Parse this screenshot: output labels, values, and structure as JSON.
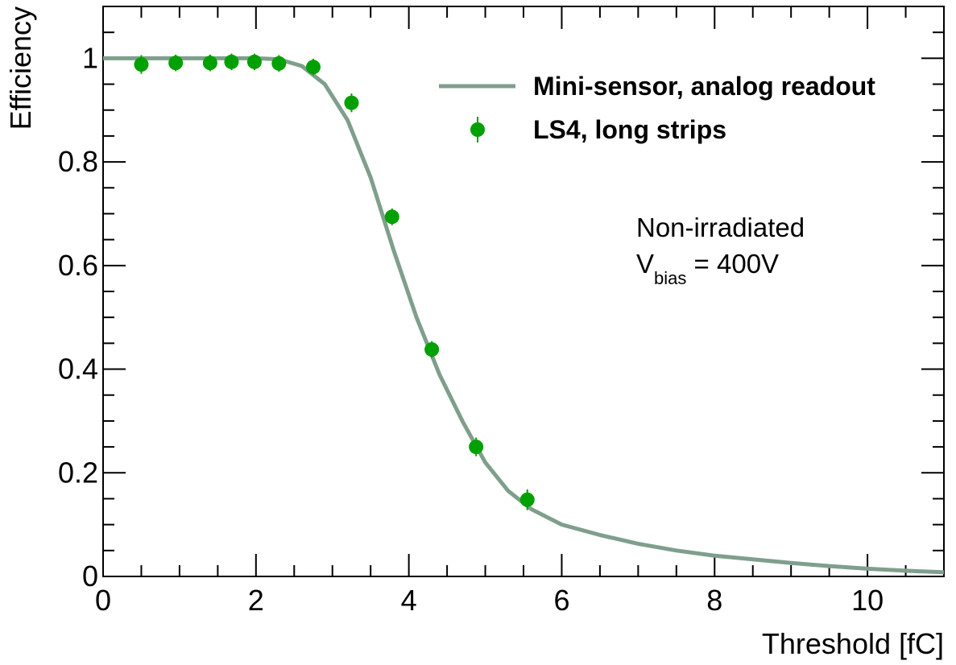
{
  "chart_data": {
    "type": "scatter",
    "xlabel": "Threshold [fC]",
    "ylabel": "Efficiency",
    "xlim": [
      0,
      11
    ],
    "ylim": [
      0,
      1.1
    ],
    "x_major_ticks": [
      0,
      2,
      4,
      6,
      8,
      10
    ],
    "x_tick_labels": [
      "0",
      "2",
      "4",
      "6",
      "8",
      "10"
    ],
    "y_major_ticks": [
      0,
      0.2,
      0.4,
      0.6,
      0.8,
      1
    ],
    "y_tick_labels": [
      "0",
      "0.2",
      "0.4",
      "0.6",
      "0.8",
      "1"
    ],
    "grid": false,
    "legend_position": "top-right",
    "series": [
      {
        "name": "Mini-sensor, analog readout",
        "kind": "line",
        "color": "#7f9f8c",
        "x": [
          0,
          1,
          2,
          2.3,
          2.6,
          2.9,
          3.2,
          3.5,
          3.8,
          4.1,
          4.4,
          4.7,
          5.0,
          5.3,
          5.6,
          6.0,
          6.5,
          7.0,
          7.5,
          8.0,
          8.5,
          9.0,
          9.5,
          10.0,
          10.5,
          11.0
        ],
        "y": [
          1.0,
          1.0,
          1.0,
          0.998,
          0.985,
          0.95,
          0.88,
          0.77,
          0.63,
          0.5,
          0.39,
          0.3,
          0.22,
          0.165,
          0.13,
          0.1,
          0.08,
          0.063,
          0.05,
          0.04,
          0.033,
          0.026,
          0.02,
          0.015,
          0.011,
          0.008
        ]
      },
      {
        "name": "LS4, long strips",
        "kind": "points",
        "color": "#00a000",
        "x": [
          0.5,
          0.95,
          1.4,
          1.68,
          1.98,
          2.3,
          2.75,
          3.25,
          3.78,
          4.3,
          4.88,
          5.55
        ],
        "y": [
          0.988,
          0.991,
          0.991,
          0.993,
          0.993,
          0.99,
          0.983,
          0.914,
          0.694,
          0.438,
          0.25,
          0.148
        ],
        "yerr": [
          0.018,
          0.016,
          0.016,
          0.016,
          0.016,
          0.016,
          0.016,
          0.018,
          0.016,
          0.016,
          0.018,
          0.02
        ]
      }
    ],
    "annotation": {
      "line1": "Non-irradiated",
      "line2_main": "V",
      "line2_sub": "bias",
      "line2_rest": " = 400V"
    }
  }
}
